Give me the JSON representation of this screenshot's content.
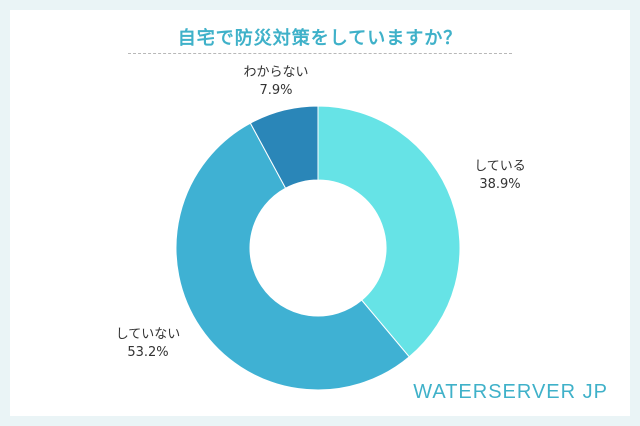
{
  "chart_data": {
    "type": "pie",
    "donut": true,
    "title": "自宅で防災対策をしていますか？",
    "slices": [
      {
        "label": "している",
        "value": 38.9,
        "value_label": "38.9%",
        "color": "#66e3e6"
      },
      {
        "label": "していない",
        "value": 53.2,
        "value_label": "53.2%",
        "color": "#3fb1d3"
      },
      {
        "label": "わからない",
        "value": 7.9,
        "value_label": "7.9%",
        "color": "#2a86b8"
      }
    ]
  },
  "brand": "WATERSERVER JP",
  "colors": {
    "background": "#eaf4f6",
    "card": "#ffffff",
    "accent": "#3fb1c9"
  }
}
